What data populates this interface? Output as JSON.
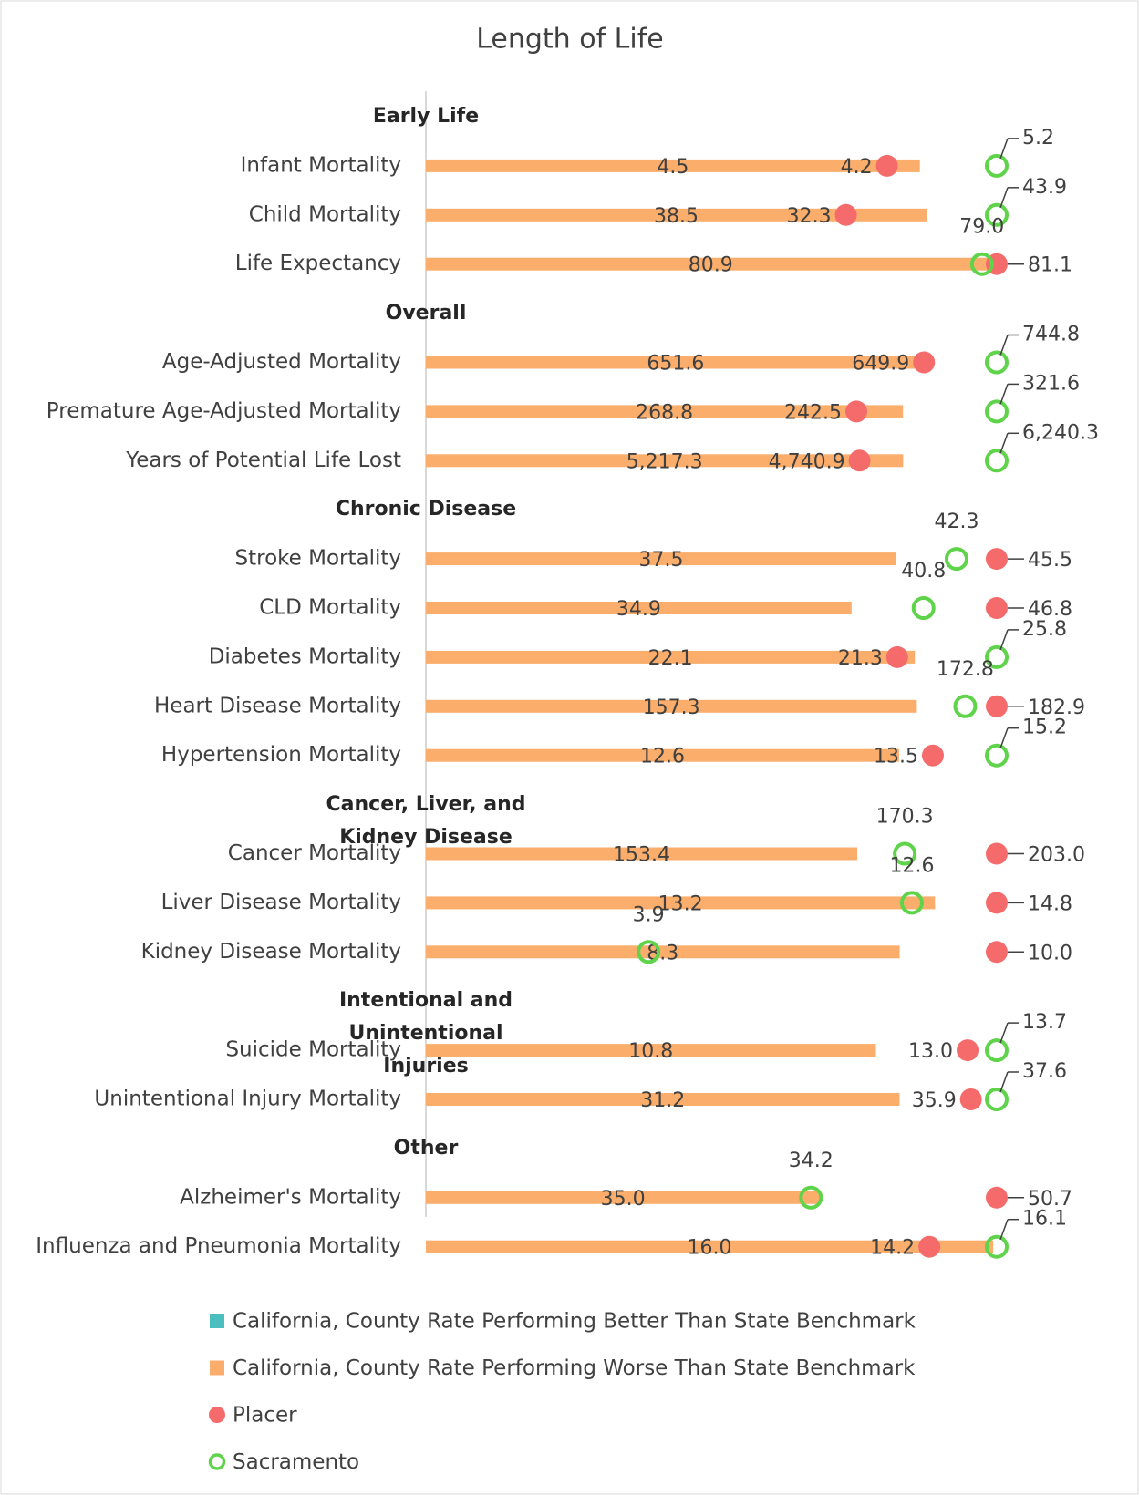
{
  "chart_data": {
    "type": "dot-bar",
    "title": "Length of Life",
    "groups": [
      {
        "name": "Early Life",
        "categories": [
          "Infant Mortality",
          "Child Mortality",
          "Life Expectancy"
        ]
      },
      {
        "name": "Overall",
        "categories": [
          "Age-Adjusted Mortality",
          "Premature Age-Adjusted Mortality",
          "Years of Potential Life Lost"
        ]
      },
      {
        "name": "Chronic Disease",
        "categories": [
          "Stroke Mortality",
          "CLD Mortality",
          "Diabetes Mortality",
          "Heart Disease Mortality",
          "Hypertension Mortality"
        ]
      },
      {
        "name": "Cancer, Liver, and Kidney Disease",
        "categories": [
          "Cancer Mortality",
          "Liver Disease Mortality",
          "Kidney Disease Mortality"
        ]
      },
      {
        "name": "Intentional and Unintentional Injuries",
        "categories": [
          "Suicide Mortality",
          "Unintentional Injury Mortality"
        ]
      },
      {
        "name": "Other",
        "categories": [
          "Alzheimer's Mortality",
          "Influenza and Pneumonia Mortality"
        ]
      }
    ],
    "series": [
      {
        "name": "California, County Rate Performing Better Than State Benchmark",
        "color": "#4bbfbf",
        "values": [
          [
            null,
            null,
            null
          ],
          [
            null,
            null,
            null
          ],
          [
            null,
            null,
            null,
            null,
            null
          ],
          [
            null,
            null,
            null
          ],
          [
            null,
            null
          ],
          [
            null,
            null
          ]
        ]
      },
      {
        "name": "California, County Rate Performing Worse Than State Benchmark",
        "color": "#fbae6c",
        "values": [
          [
            4.5,
            38.5,
            80.9
          ],
          [
            651.6,
            268.8,
            5217.3
          ],
          [
            37.5,
            34.9,
            22.1,
            157.3,
            12.6
          ],
          [
            153.4,
            13.2,
            8.3
          ],
          [
            10.8,
            31.2
          ],
          [
            35.0,
            16.0
          ]
        ],
        "value_labels": [
          [
            "4.5",
            "38.5",
            "80.9"
          ],
          [
            "651.6",
            "268.8",
            "5,217.3"
          ],
          [
            "37.5",
            "34.9",
            "22.1",
            "157.3",
            "12.6"
          ],
          [
            "153.4",
            "13.2",
            "8.3"
          ],
          [
            "10.8",
            "31.2"
          ],
          [
            "35.0",
            "16.0"
          ]
        ]
      },
      {
        "name": "Placer",
        "color": "#f56b6b",
        "values": [
          [
            4.2,
            32.3,
            81.1
          ],
          [
            649.9,
            242.5,
            4740.9
          ],
          [
            45.5,
            46.8,
            21.3,
            182.9,
            13.5
          ],
          [
            203.0,
            14.8,
            10.0
          ],
          [
            13.0,
            35.9
          ],
          [
            50.7,
            14.2
          ]
        ],
        "value_labels": [
          [
            "4.2",
            "32.3",
            "81.1"
          ],
          [
            "649.9",
            "242.5",
            "4,740.9"
          ],
          [
            "45.5",
            "46.8",
            "21.3",
            "182.9",
            "13.5"
          ],
          [
            "203.0",
            "14.8",
            "10.0"
          ],
          [
            "13.0",
            "35.9"
          ],
          [
            "50.7",
            "14.2"
          ]
        ]
      },
      {
        "name": "Sacramento",
        "color": "#5fd34a",
        "values": [
          [
            5.2,
            43.9,
            79.0
          ],
          [
            744.8,
            321.6,
            6240.3
          ],
          [
            42.3,
            40.8,
            25.8,
            172.8,
            15.2
          ],
          [
            170.3,
            12.6,
            3.9
          ],
          [
            13.7,
            37.6
          ],
          [
            34.2,
            16.1
          ]
        ],
        "value_labels": [
          [
            "5.2",
            "43.9",
            "79.0"
          ],
          [
            "744.8",
            "321.6",
            "6,240.3"
          ],
          [
            "42.3",
            "40.8",
            "25.8",
            "172.8",
            "15.2"
          ],
          [
            "170.3",
            "12.6",
            "3.9"
          ],
          [
            "13.7",
            "37.6"
          ],
          [
            "34.2",
            "16.1"
          ]
        ]
      }
    ]
  }
}
